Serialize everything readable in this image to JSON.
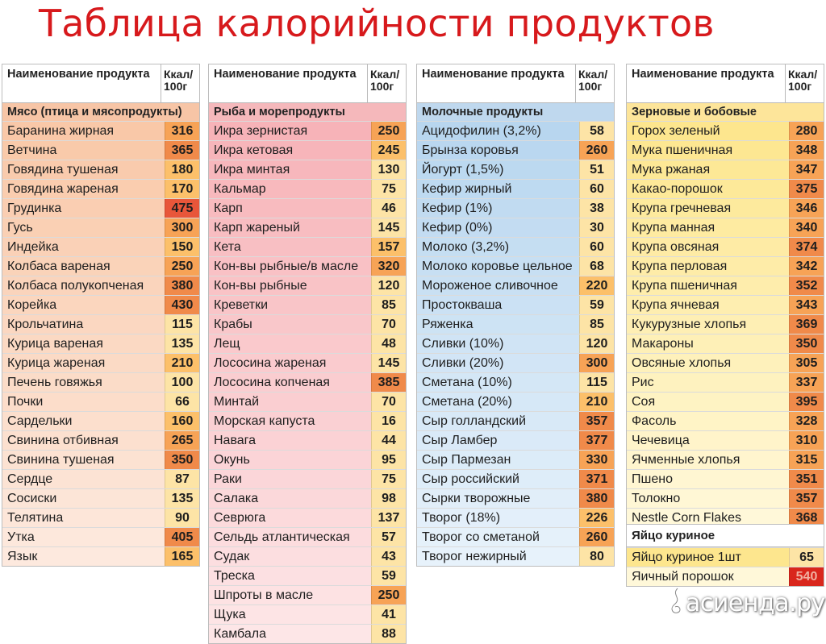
{
  "title": "Таблица калорийности продуктов",
  "header": {
    "name": "Наименование продукта",
    "kcal": "Ккал/ 100г"
  },
  "palettes": {
    "meat": {
      "cat": "#f7c5a6",
      "name": [
        "#f9c8a8",
        "#fde9de"
      ],
      "val": [
        "#fde4a6",
        "#fcc06a",
        "#f7a356",
        "#f08a4a",
        "#e8563a"
      ]
    },
    "fish": {
      "cat": "#f5b8bb",
      "name": [
        "#f7b3b8",
        "#fde6e7"
      ],
      "val": [
        "#fde4a6",
        "#fcc06a",
        "#f7a356",
        "#f08a4a",
        "#e8563a"
      ]
    },
    "dairy": {
      "cat": "#bfd8ee",
      "name": [
        "#b8d6ef",
        "#e7f2fb"
      ],
      "val": [
        "#fde4a6",
        "#fcc06a",
        "#f7a356",
        "#f08a4a",
        "#e8563a"
      ]
    },
    "grain": {
      "cat": "#fde59a",
      "name": [
        "#fde68e",
        "#fff8d9"
      ],
      "val": [
        "#fde4a6",
        "#fcc06a",
        "#f7a356",
        "#f08a4a",
        "#e8563a"
      ]
    }
  },
  "columns": [
    {
      "category": "Мясо (птица и мясопродукты)",
      "rows": [
        {
          "name": "Баранина жирная",
          "kcal": "316"
        },
        {
          "name": "Ветчина",
          "kcal": "365"
        },
        {
          "name": "Говядина тушеная",
          "kcal": "180"
        },
        {
          "name": "Говядина жареная",
          "kcal": "170"
        },
        {
          "name": "Грудинка",
          "kcal": "475"
        },
        {
          "name": "Гусь",
          "kcal": "300"
        },
        {
          "name": "Индейка",
          "kcal": "150"
        },
        {
          "name": "Колбаса вареная",
          "kcal": "250"
        },
        {
          "name": "Колбаса полукопченая",
          "kcal": "380"
        },
        {
          "name": "Корейка",
          "kcal": "430"
        },
        {
          "name": "Крольчатина",
          "kcal": "115"
        },
        {
          "name": "Курица вареная",
          "kcal": "135"
        },
        {
          "name": "Курица жареная",
          "kcal": "210"
        },
        {
          "name": "Печень говяжья",
          "kcal": "100"
        },
        {
          "name": "Почки",
          "kcal": "66"
        },
        {
          "name": "Сардельки",
          "kcal": "160"
        },
        {
          "name": "Свинина отбивная",
          "kcal": "265"
        },
        {
          "name": "Свинина тушеная",
          "kcal": "350"
        },
        {
          "name": "Сердце",
          "kcal": "87"
        },
        {
          "name": "Сосиски",
          "kcal": "135"
        },
        {
          "name": "Телятина",
          "kcal": "90"
        },
        {
          "name": "Утка",
          "kcal": "405"
        },
        {
          "name": "Язык",
          "kcal": "165"
        }
      ]
    },
    {
      "category": "Рыба и морепродукты",
      "rows": [
        {
          "name": "Икра зернистая",
          "kcal": "250"
        },
        {
          "name": "Икра кетовая",
          "kcal": "245"
        },
        {
          "name": "Икра минтая",
          "kcal": "130"
        },
        {
          "name": "Кальмар",
          "kcal": "75"
        },
        {
          "name": "Карп",
          "kcal": "46"
        },
        {
          "name": "Карп жареный",
          "kcal": "145"
        },
        {
          "name": "Кета",
          "kcal": "157"
        },
        {
          "name": "Кон-вы рыбные/в масле",
          "kcal": "320"
        },
        {
          "name": "Кон-вы рыбные",
          "kcal": "120"
        },
        {
          "name": "Креветки",
          "kcal": "85"
        },
        {
          "name": "Крабы",
          "kcal": "70"
        },
        {
          "name": "Лещ",
          "kcal": "48"
        },
        {
          "name": "Лососина жареная",
          "kcal": "145"
        },
        {
          "name": "Лососина копченая",
          "kcal": "385"
        },
        {
          "name": "Минтай",
          "kcal": "70"
        },
        {
          "name": "Морская капуста",
          "kcal": "16"
        },
        {
          "name": "Навага",
          "kcal": "44"
        },
        {
          "name": "Окунь",
          "kcal": "95"
        },
        {
          "name": "Раки",
          "kcal": "75"
        },
        {
          "name": "Салака",
          "kcal": "98"
        },
        {
          "name": "Севрюга",
          "kcal": "137"
        },
        {
          "name": "Сельдь атлантическая",
          "kcal": "57"
        },
        {
          "name": "Судак",
          "kcal": "43"
        },
        {
          "name": "Треска",
          "kcal": "59"
        },
        {
          "name": "Шпроты в масле",
          "kcal": "250"
        },
        {
          "name": "Щука",
          "kcal": "41"
        },
        {
          "name": "Камбала",
          "kcal": "88"
        }
      ]
    },
    {
      "category": "Молочные продукты",
      "rows": [
        {
          "name": "Ацидофилин (3,2%)",
          "kcal": "58"
        },
        {
          "name": "Брынза коровья",
          "kcal": "260"
        },
        {
          "name": "Йогурт (1,5%)",
          "kcal": "51"
        },
        {
          "name": "Кефир жирный",
          "kcal": "60"
        },
        {
          "name": "Кефир (1%)",
          "kcal": "38"
        },
        {
          "name": "Кефир (0%)",
          "kcal": "30"
        },
        {
          "name": "Молоко (3,2%)",
          "kcal": "60"
        },
        {
          "name": "Молоко коровье цельное",
          "kcal": "68"
        },
        {
          "name": "Мороженое сливочное",
          "kcal": "220"
        },
        {
          "name": "Простокваша",
          "kcal": "59"
        },
        {
          "name": "Ряженка",
          "kcal": "85"
        },
        {
          "name": "Сливки (10%)",
          "kcal": "120"
        },
        {
          "name": "Сливки (20%)",
          "kcal": "300"
        },
        {
          "name": "Сметана (10%)",
          "kcal": "115"
        },
        {
          "name": "Сметана (20%)",
          "kcal": "210"
        },
        {
          "name": "Сыр голландский",
          "kcal": "357"
        },
        {
          "name": "Сыр Ламбер",
          "kcal": "377"
        },
        {
          "name": "Сыр Пармезан",
          "kcal": "330"
        },
        {
          "name": "Сыр российский",
          "kcal": "371"
        },
        {
          "name": "Сырки творожные",
          "kcal": "380"
        },
        {
          "name": "Творог (18%)",
          "kcal": "226"
        },
        {
          "name": "Творог со сметаной",
          "kcal": "260"
        },
        {
          "name": "Творог нежирный",
          "kcal": "80"
        }
      ]
    },
    {
      "category": "Зерновые и бобовые",
      "rows": [
        {
          "name": "Горох зеленый",
          "kcal": "280"
        },
        {
          "name": "Мука пшеничная",
          "kcal": "348"
        },
        {
          "name": "Мука ржаная",
          "kcal": "347"
        },
        {
          "name": "Какао-порошок",
          "kcal": "375"
        },
        {
          "name": "Крупа гречневая",
          "kcal": "346"
        },
        {
          "name": "Крупа манная",
          "kcal": "340"
        },
        {
          "name": "Крупа овсяная",
          "kcal": "374"
        },
        {
          "name": "Крупа перловая",
          "kcal": "342"
        },
        {
          "name": "Крупа пшеничная",
          "kcal": "352"
        },
        {
          "name": "Крупа ячневая",
          "kcal": "343"
        },
        {
          "name": "Кукурузные хлопья",
          "kcal": "369"
        },
        {
          "name": "Макароны",
          "kcal": "350"
        },
        {
          "name": "Овсяные хлопья",
          "kcal": "305"
        },
        {
          "name": "Рис",
          "kcal": "337"
        },
        {
          "name": "Соя",
          "kcal": "395"
        },
        {
          "name": "Фасоль",
          "kcal": "328"
        },
        {
          "name": "Чечевица",
          "kcal": "310"
        },
        {
          "name": "Ячменные хлопья",
          "kcal": "315"
        },
        {
          "name": "Пшено",
          "kcal": "351"
        },
        {
          "name": "Толокно",
          "kcal": "357"
        },
        {
          "name": "Nestle Corn Flakes",
          "kcal": "368"
        }
      ]
    }
  ],
  "egg": {
    "category": "Яйцо куриное",
    "rows": [
      {
        "name": "Яйцо куриное 1шт",
        "kcal": "65"
      },
      {
        "name": "Яичный порошок",
        "kcal": "540"
      }
    ]
  },
  "watermark": "асиенда.ру"
}
